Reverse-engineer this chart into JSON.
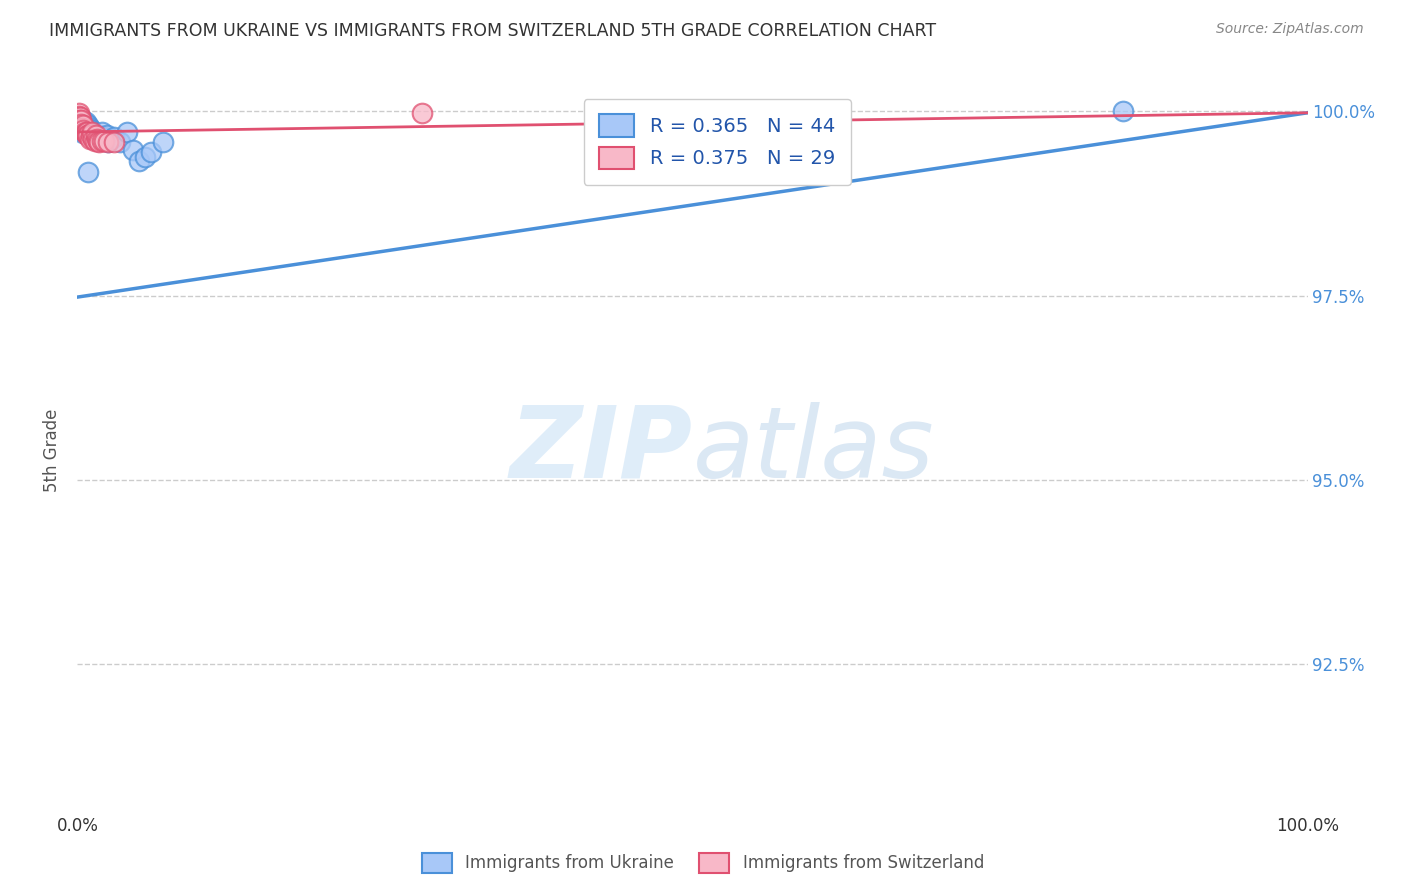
{
  "title": "IMMIGRANTS FROM UKRAINE VS IMMIGRANTS FROM SWITZERLAND 5TH GRADE CORRELATION CHART",
  "source": "Source: ZipAtlas.com",
  "ylabel": "5th Grade",
  "xlim": [
    0.0,
    1.0
  ],
  "ylim": [
    0.905,
    1.003
  ],
  "x_tick_positions": [
    0.0,
    0.1,
    0.2,
    0.3,
    0.4,
    0.5,
    0.6,
    0.7,
    0.8,
    0.9,
    1.0
  ],
  "x_tick_labels": [
    "0.0%",
    "",
    "",
    "",
    "",
    "",
    "",
    "",
    "",
    "",
    "100.0%"
  ],
  "y_tick_values": [
    0.925,
    0.95,
    0.975,
    1.0
  ],
  "y_tick_labels": [
    "92.5%",
    "95.0%",
    "97.5%",
    "100.0%"
  ],
  "legend_ukraine": "R = 0.365   N = 44",
  "legend_switzerland": "R = 0.375   N = 29",
  "ukraine_color": "#a8c8f8",
  "ukraine_line_color": "#4a90d9",
  "switzerland_color": "#f8b8c8",
  "switzerland_line_color": "#e05070",
  "watermark_zip": "ZIP",
  "watermark_atlas": "atlas",
  "ukraine_x": [
    0.001,
    0.001,
    0.002,
    0.002,
    0.003,
    0.003,
    0.004,
    0.004,
    0.005,
    0.005,
    0.006,
    0.006,
    0.007,
    0.007,
    0.008,
    0.008,
    0.009,
    0.01,
    0.01,
    0.01,
    0.011,
    0.012,
    0.013,
    0.014,
    0.015,
    0.016,
    0.017,
    0.018,
    0.019,
    0.02,
    0.022,
    0.024,
    0.025,
    0.027,
    0.03,
    0.035,
    0.04,
    0.045,
    0.05,
    0.055,
    0.06,
    0.07,
    0.85,
    0.009
  ],
  "ukraine_y": [
    0.999,
    0.998,
    0.999,
    0.998,
    0.9985,
    0.998,
    0.999,
    0.998,
    0.9985,
    0.997,
    0.998,
    0.9975,
    0.9985,
    0.997,
    0.998,
    0.9975,
    0.9982,
    0.9978,
    0.9975,
    0.997,
    0.9975,
    0.9972,
    0.997,
    0.9968,
    0.9965,
    0.9962,
    0.996,
    0.9968,
    0.9962,
    0.9972,
    0.9965,
    0.9968,
    0.9958,
    0.9962,
    0.9965,
    0.9958,
    0.9972,
    0.9948,
    0.9932,
    0.9938,
    0.9945,
    0.9958,
    1.0,
    0.9918
  ],
  "switzerland_x": [
    0.001,
    0.001,
    0.002,
    0.002,
    0.003,
    0.003,
    0.004,
    0.005,
    0.005,
    0.006,
    0.007,
    0.008,
    0.008,
    0.009,
    0.01,
    0.011,
    0.012,
    0.013,
    0.014,
    0.015,
    0.016,
    0.017,
    0.018,
    0.02,
    0.022,
    0.025,
    0.03,
    0.28,
    0.55
  ],
  "switzerland_y": [
    0.9998,
    0.9993,
    0.9992,
    0.9988,
    0.9988,
    0.9983,
    0.9978,
    0.9982,
    0.9975,
    0.9972,
    0.997,
    0.9972,
    0.9968,
    0.9968,
    0.9963,
    0.9968,
    0.9972,
    0.9963,
    0.996,
    0.9968,
    0.9963,
    0.996,
    0.9958,
    0.996,
    0.996,
    0.9958,
    0.9958,
    0.9998,
    0.9998
  ],
  "ukraine_trend_x": [
    0.0,
    1.0
  ],
  "ukraine_trend_y": [
    0.9748,
    0.9998
  ],
  "switzerland_trend_x": [
    0.0,
    1.0
  ],
  "switzerland_trend_y": [
    0.9972,
    0.9998
  ]
}
